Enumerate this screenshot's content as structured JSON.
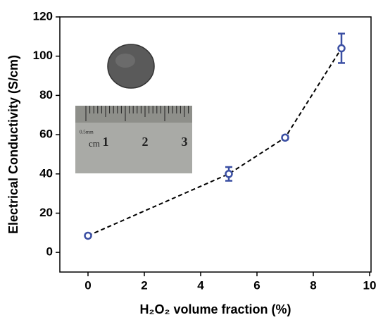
{
  "chart_data": {
    "type": "scatter",
    "xlabel": "H₂O₂ volume fraction (%)",
    "ylabel": "Electrical Conductivity (S/cm)",
    "x": [
      0,
      5,
      7,
      9
    ],
    "series": [
      {
        "color": "#3b4fa3",
        "line_color": "#000000",
        "values": [
          8.5,
          40,
          58.5,
          104
        ],
        "errors": [
          0.5,
          3.5,
          1,
          7.5
        ]
      }
    ],
    "xlim": [
      -1,
      10
    ],
    "ylim": [
      -10,
      120
    ],
    "xticks": [
      0,
      2,
      4,
      6,
      8,
      10
    ],
    "yticks": [
      0,
      20,
      40,
      60,
      80,
      100,
      120
    ],
    "grid": false,
    "annotations": [
      "0.5mm",
      "cm",
      "1",
      "2",
      "3"
    ]
  }
}
